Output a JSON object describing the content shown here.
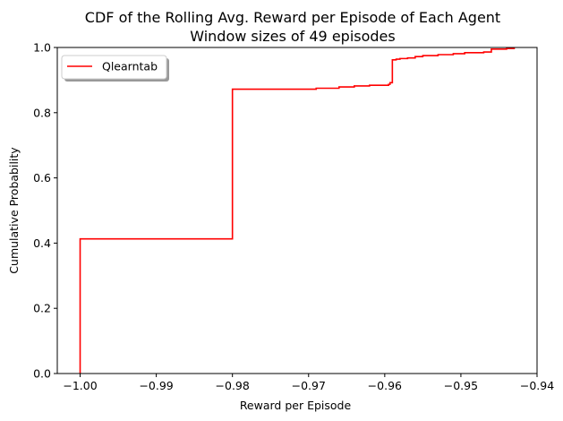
{
  "chart_data": {
    "type": "line",
    "step": "post",
    "title_line1": "CDF of the Rolling Avg. Reward per Episode of Each Agent",
    "title_line2": "Window sizes of 49 episodes",
    "xlabel": "Reward per Episode",
    "ylabel": "Cumulative Probability",
    "xlim": [
      -1.003,
      -0.94
    ],
    "ylim": [
      0.0,
      1.0
    ],
    "xticks": [
      -1.0,
      -0.99,
      -0.98,
      -0.97,
      -0.96,
      -0.95,
      -0.94
    ],
    "xtick_labels": [
      "−1.00",
      "−0.99",
      "−0.98",
      "−0.97",
      "−0.96",
      "−0.95",
      "−0.94"
    ],
    "yticks": [
      0.0,
      0.2,
      0.4,
      0.6,
      0.8,
      1.0
    ],
    "ytick_labels": [
      "0.0",
      "0.2",
      "0.4",
      "0.6",
      "0.8",
      "1.0"
    ],
    "grid": false,
    "legend_position": "upper-left",
    "series": [
      {
        "name": "Qlearntab",
        "color": "#ff0000",
        "x": [
          -1.0,
          -1.0,
          -0.98,
          -0.98,
          -0.97,
          -0.969,
          -0.966,
          -0.964,
          -0.962,
          -0.9595,
          -0.9593,
          -0.959,
          -0.9585,
          -0.958,
          -0.957,
          -0.956,
          -0.955,
          -0.953,
          -0.951,
          -0.9495,
          -0.947,
          -0.946,
          -0.944,
          -0.943
        ],
        "y": [
          0.0,
          0.413,
          0.413,
          0.872,
          0.872,
          0.875,
          0.879,
          0.882,
          0.884,
          0.887,
          0.892,
          0.962,
          0.964,
          0.966,
          0.968,
          0.972,
          0.975,
          0.978,
          0.981,
          0.984,
          0.986,
          0.995,
          0.997,
          1.0
        ]
      }
    ]
  }
}
